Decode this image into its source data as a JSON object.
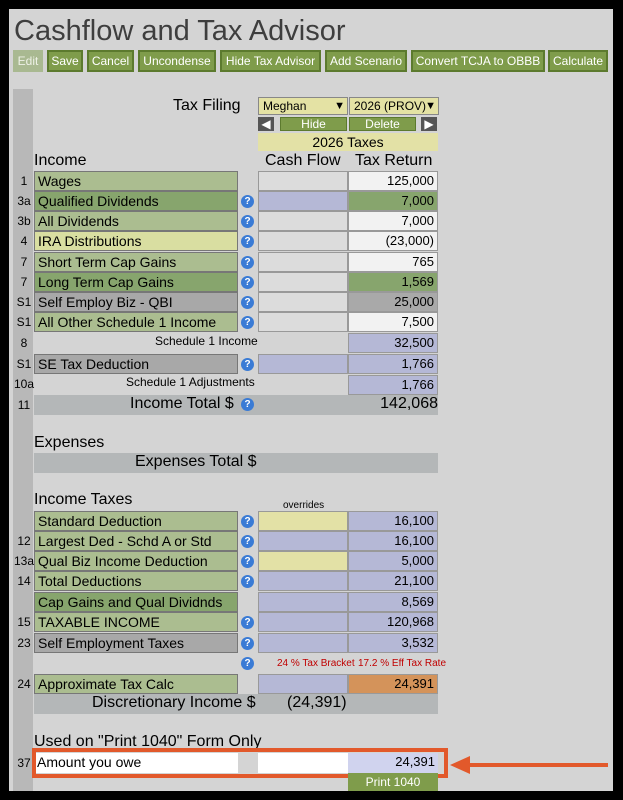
{
  "title": "Cashflow and Tax Advisor",
  "toolbar": {
    "edit": "Edit",
    "save": "Save",
    "cancel": "Cancel",
    "uncondense": "Uncondense",
    "hide_tax_advisor": "Hide Tax Advisor",
    "add_scenario": "Add Scenario",
    "convert": "Convert TCJA to OBBB",
    "calculate": "Calculate"
  },
  "filing": {
    "label": "Tax Filing",
    "person": "Meghan",
    "year": "2026 (PROV)",
    "hide": "Hide",
    "delete": "Delete",
    "scenario_title": "2026 Taxes"
  },
  "headers": {
    "income": "Income",
    "cash_flow": "Cash Flow",
    "tax_return": "Tax Return",
    "expenses": "Expenses",
    "expenses_total": "Expenses Total $",
    "income_taxes": "Income Taxes",
    "overrides": "overrides",
    "used_on": "Used on \"Print 1040\" Form Only"
  },
  "income_rows": [
    {
      "num": "1",
      "label": "Wages",
      "value": "125,000"
    },
    {
      "num": "3a",
      "label": "Qualified Dividends",
      "value": "7,000"
    },
    {
      "num": "3b",
      "label": "All Dividends",
      "value": "7,000"
    },
    {
      "num": "4",
      "label": "IRA Distributions",
      "value": "(23,000)"
    },
    {
      "num": "7",
      "label": "Short Term Cap Gains",
      "value": "765"
    },
    {
      "num": "7",
      "label": "Long Term Cap Gains",
      "value": "1,569"
    },
    {
      "num": "S1",
      "label": "Self Employ Biz - QBI",
      "value": "25,000"
    },
    {
      "num": "S1",
      "label": "All Other Schedule 1 Income",
      "value": "7,500"
    }
  ],
  "schedule1": {
    "num": "8",
    "label": "Schedule 1 Income",
    "value": "32,500"
  },
  "se_deduction": {
    "num": "S1",
    "label": "SE Tax Deduction",
    "value": "1,766"
  },
  "schedule1_adj": {
    "num": "10a",
    "label": "Schedule 1 Adjustments",
    "value": "1,766"
  },
  "income_total": {
    "num": "11",
    "label": "Income Total $",
    "value": "142,068"
  },
  "tax_rows": [
    {
      "num": "",
      "label": "Standard Deduction",
      "value": "16,100"
    },
    {
      "num": "12",
      "label": "Largest Ded - Schd A or Std",
      "value": "16,100"
    },
    {
      "num": "13a",
      "label": "Qual Biz Income Deduction",
      "value": "5,000"
    },
    {
      "num": "14",
      "label": "Total Deductions",
      "value": "21,100"
    },
    {
      "num": "",
      "label": "Cap Gains and Qual Dividnds",
      "value": "8,569"
    },
    {
      "num": "15",
      "label": "TAXABLE INCOME",
      "value": "120,968"
    },
    {
      "num": "23",
      "label": "Self Employment Taxes",
      "value": "3,532"
    }
  ],
  "rates": {
    "bracket": "24 % Tax Bracket",
    "effective": "17.2 % Eff Tax Rate"
  },
  "approx_tax": {
    "num": "24",
    "label": "Approximate Tax Calc",
    "value": "24,391"
  },
  "discretionary": {
    "label": "Discretionary Income $",
    "value": "(24,391)"
  },
  "owe": {
    "num": "37",
    "label": "Amount you owe",
    "value": "24,391"
  },
  "print_button": "Print 1040",
  "colors": {
    "button": "#7f9c4b",
    "callout": "#e2592b"
  }
}
